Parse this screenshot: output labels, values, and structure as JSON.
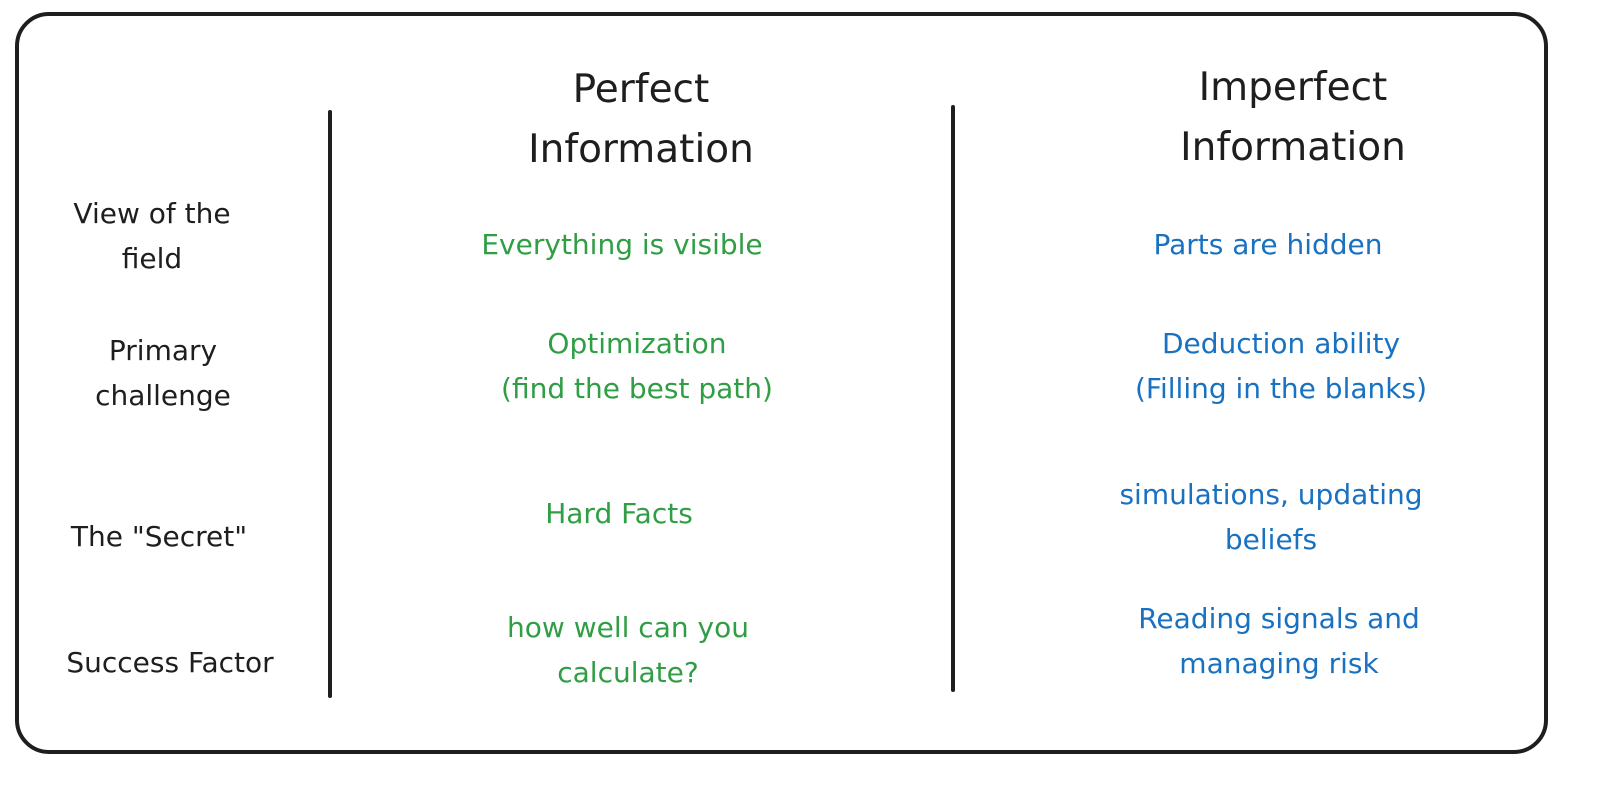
{
  "colors": {
    "perfect": "#2f9e44",
    "imperfect": "#1971c2",
    "ink": "#1e1e1e"
  },
  "headers": {
    "perfect": [
      "Perfect",
      "Information"
    ],
    "imperfect": [
      "Imperfect",
      "Information"
    ]
  },
  "rows": [
    {
      "label": [
        "View of the",
        "field"
      ],
      "perfect": [
        "Everything is visible"
      ],
      "imperfect": [
        "Parts are hidden"
      ]
    },
    {
      "label": [
        "Primary",
        "challenge"
      ],
      "perfect": [
        "Optimization",
        "(find the best path)"
      ],
      "imperfect": [
        "Deduction ability",
        "(Filling in the blanks)"
      ]
    },
    {
      "label": [
        "The \"Secret\""
      ],
      "perfect": [
        "Hard Facts"
      ],
      "imperfect": [
        "simulations, updating",
        "beliefs"
      ]
    },
    {
      "label": [
        "Success Factor"
      ],
      "perfect": [
        "how well can you",
        "calculate?"
      ],
      "imperfect": [
        "Reading signals and",
        "managing risk"
      ]
    }
  ]
}
